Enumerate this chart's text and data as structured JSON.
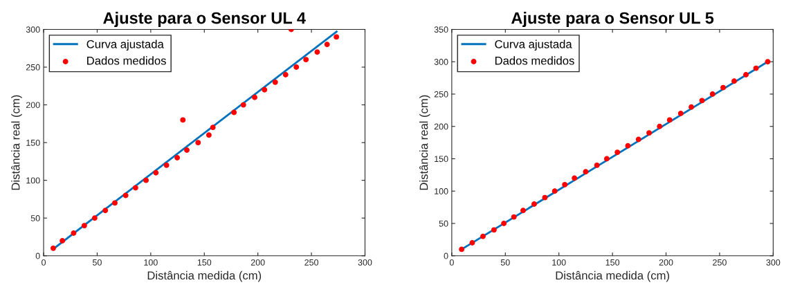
{
  "chart_data": [
    {
      "type": "scatter",
      "title": "Ajuste para o Sensor UL 4",
      "xlabel": "Distância medida (cm)",
      "ylabel": "Distância real (cm)",
      "xlim": [
        0,
        300
      ],
      "ylim": [
        0,
        300
      ],
      "xticks": [
        0,
        50,
        100,
        150,
        200,
        250,
        300
      ],
      "yticks": [
        0,
        50,
        100,
        150,
        200,
        250,
        300
      ],
      "grid": false,
      "legend": "top left",
      "series": [
        {
          "name": "Curva ajustada",
          "type": "line",
          "color": "#0072bd",
          "marker": "none",
          "line_style": "solid",
          "x": [
            9,
            273.5
          ],
          "values": [
            9,
            297
          ]
        },
        {
          "name": "Dados medidos",
          "color": "#ff0000",
          "marker": "circle",
          "x": [
            9,
            17.5,
            28,
            38,
            47.7,
            57.6,
            66.5,
            76.6,
            85.8,
            95.6,
            104.8,
            114.7,
            124.7,
            130,
            133.7,
            144.2,
            154.3,
            158,
            177.7,
            186.5,
            197,
            206.2,
            216.2,
            225.9,
            231.1,
            235.9,
            244.9,
            255.4,
            264.6,
            273.3
          ],
          "values": [
            10,
            20,
            30,
            40,
            50,
            60,
            70,
            80,
            90,
            100,
            110,
            120,
            130,
            180,
            140,
            150,
            160,
            170,
            190,
            200,
            210,
            220,
            230,
            240,
            300,
            250,
            260,
            270,
            280,
            290
          ]
        }
      ]
    },
    {
      "type": "scatter",
      "title": "Ajuste para o Sensor UL 5",
      "xlabel": "Distância medida (cm)",
      "ylabel": "Distância real (cm)",
      "xlim": [
        0,
        300
      ],
      "ylim": [
        0,
        350
      ],
      "xticks": [
        0,
        50,
        100,
        150,
        200,
        250,
        300
      ],
      "yticks": [
        0,
        50,
        100,
        150,
        200,
        250,
        300,
        350
      ],
      "grid": false,
      "legend": "top left",
      "series": [
        {
          "name": "Curva ajustada",
          "type": "line",
          "color": "#0072bd",
          "marker": "none",
          "line_style": "solid",
          "x": [
            9.2,
            294.9
          ],
          "values": [
            10,
            300
          ]
        },
        {
          "name": "Dados medidos",
          "color": "#ff0000",
          "marker": "circle",
          "x": [
            9.2,
            19.1,
            29.1,
            39.4,
            48.6,
            58,
            66.6,
            76.9,
            86.9,
            96.1,
            105.5,
            114.5,
            125,
            135.5,
            144.7,
            154.6,
            164.4,
            174.3,
            184.2,
            194,
            203.4,
            213.7,
            223.6,
            233.6,
            243.4,
            253.3,
            263.6,
            274.6,
            284,
            294.9
          ],
          "values": [
            10,
            20,
            30,
            40,
            50,
            60,
            70,
            80,
            90,
            100,
            110,
            120,
            130,
            140,
            150,
            160,
            170,
            180,
            190,
            200,
            210,
            220,
            230,
            240,
            250,
            260,
            270,
            280,
            290,
            300
          ]
        }
      ]
    }
  ]
}
